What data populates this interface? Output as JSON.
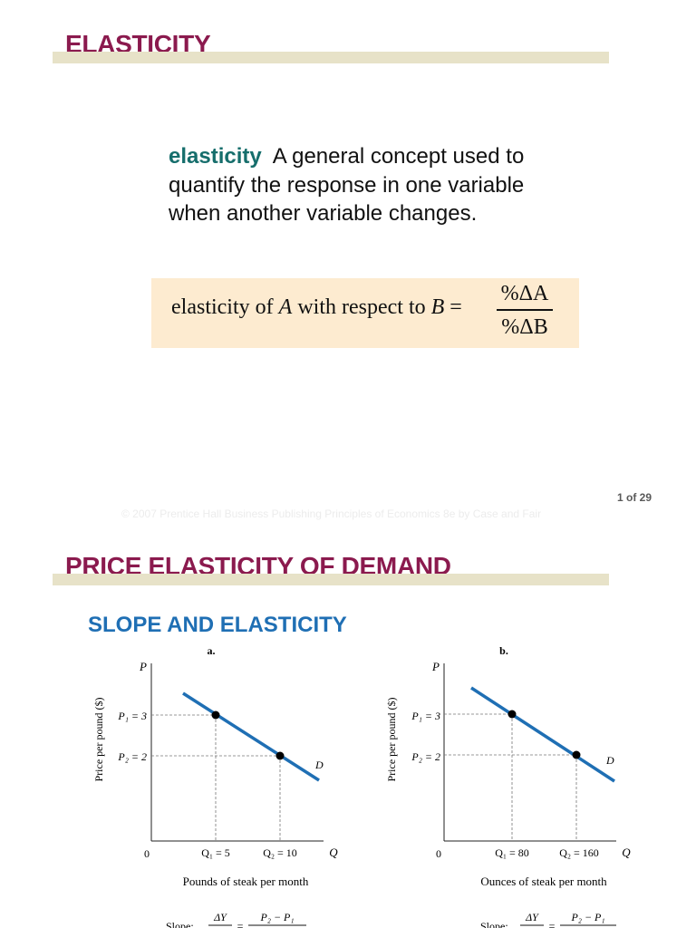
{
  "slide1": {
    "title": "ELASTICITY",
    "definition": {
      "term": "elasticity",
      "text": "A general concept used to quantify the response in one variable when another variable changes."
    },
    "formula": {
      "lhs_prefix": "elasticity of ",
      "var_a": "A",
      "lhs_middle": " with respect to ",
      "var_b": "B",
      "equals": " =",
      "numerator": "%ΔA",
      "denominator": "%ΔB"
    },
    "page_number": "1 of 29",
    "copyright": "© 2007 Prentice Hall Business Publishing   Principles of Economics 8e by Case and Fair"
  },
  "slide2": {
    "title": "PRICE ELASTICITY OF DEMAND",
    "subtitle": "SLOPE AND ELASTICITY",
    "panel_a": {
      "label": "a.",
      "y_axis_symbol": "P",
      "x_axis_symbol": "Q",
      "y_axis_title": "Price per pound ($)",
      "x_axis_title": "Pounds of steak per month",
      "origin": "0",
      "p1_label": "P₁ = 3",
      "p2_label": "P₂ = 2",
      "q1_label": "Q₁ = 5",
      "q2_label": "Q₂ = 10",
      "curve_label": "D",
      "slope_prefix": "Slope:",
      "slope_num": "ΔY",
      "slope_eq": "=",
      "slope_rhs_num": "P₂  −  P₁"
    },
    "panel_b": {
      "label": "b.",
      "y_axis_symbol": "P",
      "x_axis_symbol": "Q",
      "y_axis_title": "Price per pound ($)",
      "x_axis_title": "Ounces of steak per month",
      "origin": "0",
      "p1_label": "P₁ = 3",
      "p2_label": "P₂ = 2",
      "q1_label": "Q₁ = 80",
      "q2_label": "Q₂ = 160",
      "curve_label": "D",
      "slope_prefix": "Slope:",
      "slope_num": "ΔY",
      "slope_eq": "=",
      "slope_rhs_num": "P₂  −  P₁"
    }
  }
}
